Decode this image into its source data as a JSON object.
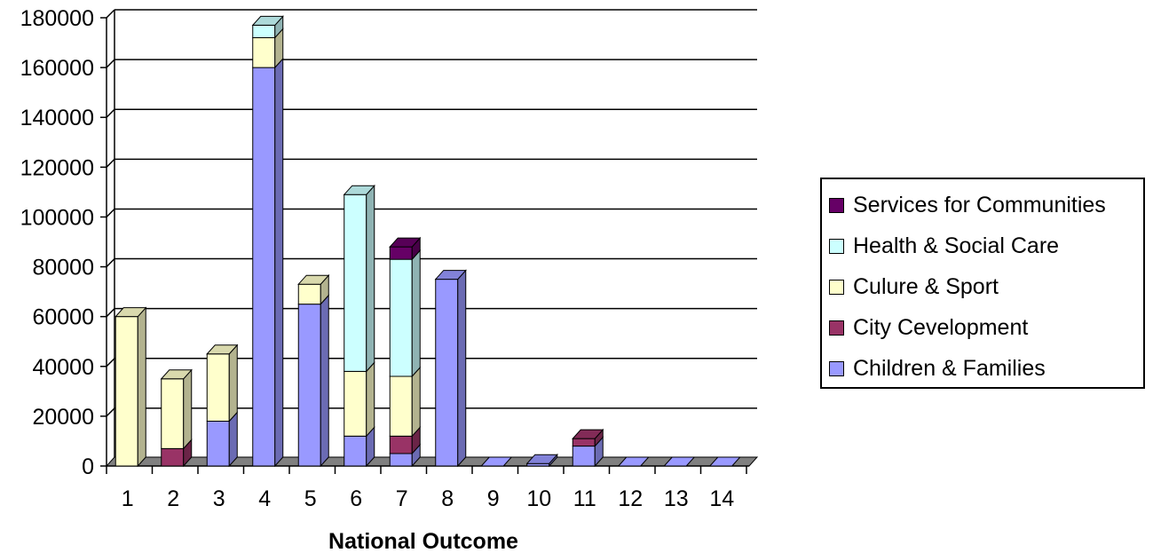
{
  "chart_data": {
    "type": "bar",
    "stacked": true,
    "three_d": true,
    "title": "",
    "xlabel": "National Outcome",
    "ylabel": "",
    "ylim": [
      0,
      180000
    ],
    "yticks": [
      "0",
      "20000",
      "40000",
      "60000",
      "80000",
      "100000",
      "120000",
      "140000",
      "160000",
      "180000"
    ],
    "categories": [
      "1",
      "2",
      "3",
      "4",
      "5",
      "6",
      "7",
      "8",
      "9",
      "10",
      "11",
      "12",
      "13",
      "14"
    ],
    "grid": true,
    "legend_position": "right",
    "series": [
      {
        "name": "Children & Families",
        "color": "#9999ff",
        "values": [
          0,
          0,
          18000,
          160000,
          65000,
          12000,
          5000,
          75000,
          0,
          1000,
          8000,
          0,
          0,
          0
        ]
      },
      {
        "name": "City Cevelopment",
        "color": "#993366",
        "values": [
          0,
          7000,
          0,
          0,
          0,
          0,
          7000,
          0,
          0,
          0,
          3000,
          0,
          0,
          0
        ]
      },
      {
        "name": "Culure & Sport",
        "color": "#ffffcc",
        "values": [
          60000,
          28000,
          27000,
          12000,
          8000,
          26000,
          24000,
          0,
          0,
          0,
          0,
          0,
          0,
          0
        ]
      },
      {
        "name": "Health & Social Care",
        "color": "#ccffff",
        "values": [
          0,
          0,
          0,
          5000,
          0,
          71000,
          47000,
          0,
          0,
          0,
          0,
          0,
          0,
          0
        ]
      },
      {
        "name": "Services for Communities",
        "color": "#660066",
        "values": [
          0,
          0,
          0,
          0,
          0,
          0,
          5000,
          0,
          0,
          0,
          0,
          0,
          0,
          0
        ]
      }
    ]
  }
}
